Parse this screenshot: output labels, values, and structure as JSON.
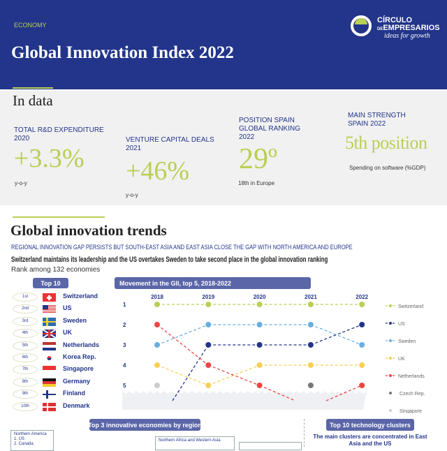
{
  "header": {
    "section": "ECONOMY",
    "title": "Global Innovation Index 2022",
    "logo": {
      "line1": "CÍRCULO",
      "line2_prefix": "DE",
      "line2": "EMPRESARIOS",
      "tagline": "ideas for growth"
    }
  },
  "in_data": {
    "heading": "In data",
    "stats": [
      {
        "label": "TOTAL R&D EXPENDITURE 2020",
        "value": "+3.3%",
        "note": "y-o-y"
      },
      {
        "label": "VENTURE CAPITAL DEALS 2021",
        "value": "+46%",
        "note": "y-o-y"
      },
      {
        "label": "POSITION SPAIN GLOBAL RANKING 2022",
        "value": "29º",
        "note": "18th in Europe"
      },
      {
        "label": "MAIN STRENGTH SPAIN 2022",
        "value": "5th position",
        "note": "Spending on software (%GDP)"
      }
    ]
  },
  "trends": {
    "heading": "Global innovation trends",
    "subtitle": "REGIONAL INNOVATION GAP PERSISTS BUT SOUTH-EAST ASIA AND EAST ASIA CLOSE THE GAP WITH NORTH AMERICA AND EUROPE",
    "headline": "Switzerland maintains its leadership and the US overtakes Sweden to take second place in the global innovation ranking",
    "rank_note": "Rank among 132 economies",
    "top10_label": "Top 10",
    "top10": [
      {
        "rank": "1st",
        "country": "Switzerland",
        "flag": "switzerland-flag"
      },
      {
        "rank": "2nd",
        "country": "US",
        "flag": "us-flag"
      },
      {
        "rank": "3rd",
        "country": "Sweden",
        "flag": "sweden-flag"
      },
      {
        "rank": "4th",
        "country": "UK",
        "flag": "uk-flag"
      },
      {
        "rank": "5th",
        "country": "Netherlands",
        "flag": "netherlands-flag"
      },
      {
        "rank": "6th",
        "country": "Korea Rep.",
        "flag": "korea-flag"
      },
      {
        "rank": "7th",
        "country": "Singapore",
        "flag": "singapore-flag"
      },
      {
        "rank": "8th",
        "country": "Germany",
        "flag": "germany-flag"
      },
      {
        "rank": "9th",
        "country": "Finland",
        "flag": "finland-flag"
      },
      {
        "rank": "10th",
        "country": "Denmark",
        "flag": "denmark-flag"
      }
    ]
  },
  "chart_data": {
    "type": "line",
    "title": "Movement in the GII, top 5, 2018-2022",
    "x": [
      "2018",
      "2019",
      "2020",
      "2021",
      "2022"
    ],
    "y_ticks": [
      "1",
      "2",
      "3",
      "4",
      "5"
    ],
    "ylim": [
      1,
      5
    ],
    "y_inverted": true,
    "legend": "right",
    "series": [
      {
        "name": "Switzerland",
        "color": "#b9cf55",
        "values": [
          1,
          1,
          1,
          1,
          1
        ]
      },
      {
        "name": "US",
        "color": "#22358a",
        "values": [
          6,
          3,
          3,
          3,
          2
        ]
      },
      {
        "name": "Sweden",
        "color": "#6aaee0",
        "values": [
          3,
          2,
          2,
          2,
          3
        ]
      },
      {
        "name": "UK",
        "color": "#f7cf55",
        "values": [
          4,
          5,
          4,
          4,
          4
        ]
      },
      {
        "name": "Netherlands",
        "color": "#ee4444",
        "values": [
          2,
          4,
          5,
          6,
          5
        ]
      },
      {
        "name": "Czech Rep.",
        "color": "#777777",
        "values": [
          null,
          null,
          null,
          5,
          null
        ]
      },
      {
        "name": "Singapore",
        "color": "#cccccc",
        "values": [
          5,
          null,
          null,
          null,
          null
        ]
      }
    ]
  },
  "bottom": {
    "regions_label": "Top 3 innovative economies by region",
    "northern_america": {
      "title": "Northern America",
      "items": [
        "1.  US",
        "2.  Canada"
      ]
    },
    "nawa": {
      "title": "Northern Africa and Western Asia"
    },
    "clusters_label": "Top 10 technology clusters",
    "clusters_text": "The main clusters are concentrated in East Asia and the US"
  }
}
